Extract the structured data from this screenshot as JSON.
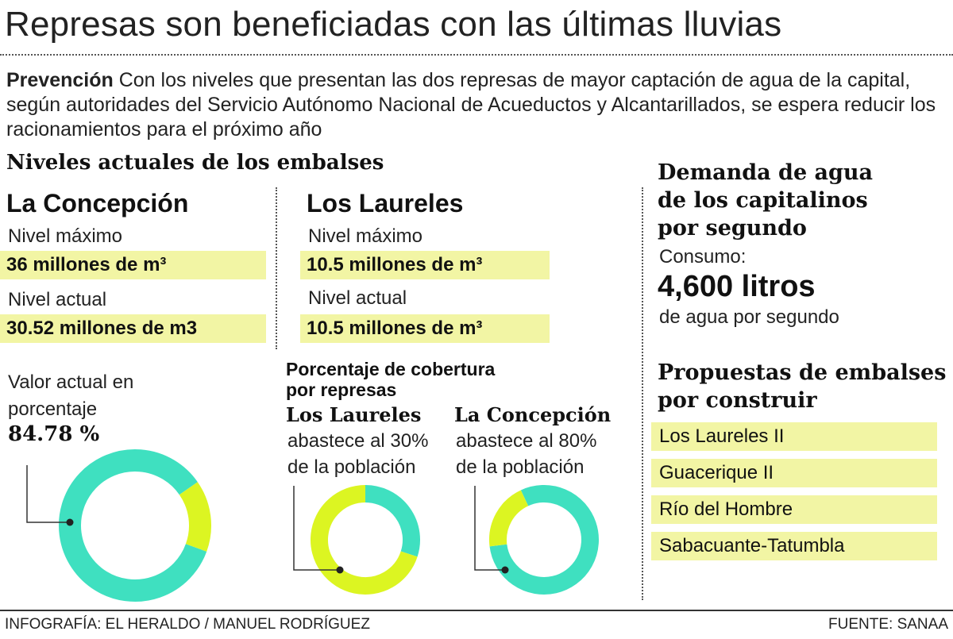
{
  "title": "Represas son beneficiadas con las últimas lluvias",
  "intro": {
    "lead": "Prevención",
    "text": " Con los niveles que presentan las dos represas de mayor captación de agua de la capital, según autoridades del Servicio Autónomo Nacional de Acueductos y Alcantarillados, se espera reducir los racionamientos para el próximo año"
  },
  "levels": {
    "section_title": "Niveles actuales de los embalses",
    "concepcion": {
      "name": "La Concepción",
      "max_label": "Nivel máximo",
      "max_value": "36 millones de m³",
      "current_label": "Nivel actual",
      "current_value": "30.52 millones de m3"
    },
    "laureles": {
      "name": "Los Laureles",
      "max_label": "Nivel máximo",
      "max_value": "10.5 millones de m³",
      "current_label": "Nivel actual",
      "current_value": "10.5 millones de m³"
    }
  },
  "percent_block": {
    "label_line1": "Valor actual en",
    "label_line2": "porcentaje",
    "value": "84.78 %"
  },
  "coverage": {
    "title_line1": "Porcentaje de cobertura",
    "title_line2": "por represas",
    "laureles": {
      "name": "Los Laureles",
      "line1": "abastece al 30%",
      "line2": "de la población"
    },
    "concepcion": {
      "name": "La Concepción",
      "line1": "abastece al 80%",
      "line2": "de la población"
    }
  },
  "demand": {
    "title_line1": "Demanda de agua",
    "title_line2": "de los capitalinos",
    "title_line3": "por segundo",
    "consumo_label": "Consumo:",
    "value": "4,600 litros",
    "unit": "de agua por segundo"
  },
  "proposals": {
    "title_line1": "Propuestas de embalses",
    "title_line2": "por construir",
    "items": [
      "Los Laureles II",
      "Guacerique II",
      "Río del Hombre",
      "Sabacuante-Tatumbla"
    ]
  },
  "footer": {
    "credit": "INFOGRAFÍA: EL HERALDO / MANUEL RODRÍGUEZ",
    "source": "FUENTE: SANAA"
  },
  "colors": {
    "teal": "#3fe0c0",
    "yellow": "#dcf522",
    "highlight": "#f2f5a4"
  },
  "chart_data": [
    {
      "type": "pie",
      "variant": "donut",
      "title": "Valor actual en porcentaje",
      "categories": [
        "La Concepción nivel actual",
        "resto"
      ],
      "values": [
        84.78,
        15.22
      ],
      "colors": [
        "#3fe0c0",
        "#dcf522"
      ]
    },
    {
      "type": "pie",
      "variant": "donut",
      "title": "Los Laureles",
      "categories": [
        "abastece",
        "resto"
      ],
      "values": [
        30,
        70
      ],
      "colors": [
        "#3fe0c0",
        "#dcf522"
      ]
    },
    {
      "type": "pie",
      "variant": "donut",
      "title": "La Concepción",
      "categories": [
        "abastece",
        "resto"
      ],
      "values": [
        80,
        20
      ],
      "colors": [
        "#3fe0c0",
        "#dcf522"
      ]
    }
  ]
}
